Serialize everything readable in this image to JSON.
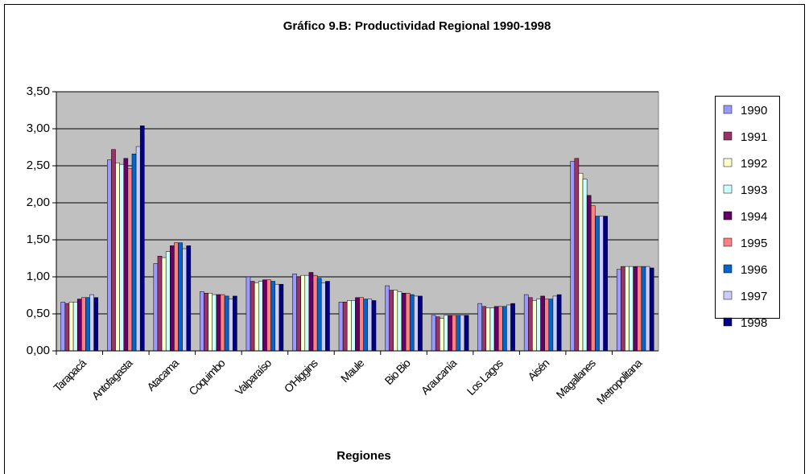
{
  "chart_data": {
    "type": "bar",
    "title": "Gráfico 9.B: Productividad Regional 1990-1998",
    "x_label": "Regiones",
    "categories": [
      "Tarapacá",
      "Antofagasta",
      "Atacama",
      "Coquimbo",
      "Valparaíso",
      "O'Higgins",
      "Maule",
      "Bio Bio",
      "Araucanía",
      "Los Lagos",
      "Aisén",
      "Magallanes",
      "Metropolitana"
    ],
    "series": [
      {
        "name": "1990",
        "color": "#9999ff",
        "values": [
          0.66,
          2.58,
          1.18,
          0.8,
          1.0,
          1.04,
          0.66,
          0.88,
          0.48,
          0.64,
          0.76,
          2.56,
          1.1
        ]
      },
      {
        "name": "1991",
        "color": "#993366",
        "values": [
          0.64,
          2.72,
          1.28,
          0.78,
          0.94,
          1.0,
          0.66,
          0.82,
          0.46,
          0.6,
          0.72,
          2.6,
          1.14
        ]
      },
      {
        "name": "1992",
        "color": "#ffffcc",
        "values": [
          0.66,
          2.54,
          1.26,
          0.78,
          0.92,
          1.02,
          0.68,
          0.82,
          0.44,
          0.58,
          0.68,
          2.4,
          1.14
        ]
      },
      {
        "name": "1993",
        "color": "#ccffff",
        "values": [
          0.66,
          2.52,
          1.34,
          0.76,
          0.94,
          1.02,
          0.68,
          0.8,
          0.48,
          0.58,
          0.7,
          2.32,
          1.14
        ]
      },
      {
        "name": "1994",
        "color": "#660066",
        "values": [
          0.7,
          2.6,
          1.42,
          0.76,
          0.96,
          1.06,
          0.72,
          0.78,
          0.48,
          0.6,
          0.74,
          2.1,
          1.14
        ]
      },
      {
        "name": "1995",
        "color": "#ff8080",
        "values": [
          0.72,
          2.46,
          1.46,
          0.76,
          0.96,
          1.02,
          0.72,
          0.78,
          0.48,
          0.6,
          0.7,
          1.96,
          1.14
        ]
      },
      {
        "name": "1996",
        "color": "#0066cc",
        "values": [
          0.72,
          2.66,
          1.46,
          0.74,
          0.94,
          0.98,
          0.7,
          0.76,
          0.48,
          0.6,
          0.7,
          1.82,
          1.14
        ]
      },
      {
        "name": "1997",
        "color": "#ccccff",
        "values": [
          0.76,
          2.76,
          1.38,
          0.7,
          0.9,
          0.92,
          0.7,
          0.74,
          0.48,
          0.62,
          0.74,
          1.82,
          1.14
        ]
      },
      {
        "name": "1998",
        "color": "#000080",
        "values": [
          0.72,
          3.04,
          1.42,
          0.74,
          0.9,
          0.94,
          0.68,
          0.74,
          0.48,
          0.64,
          0.76,
          1.82,
          1.12
        ]
      }
    ],
    "ylim": [
      0,
      3.5
    ],
    "yticks": [
      {
        "value": 0,
        "label": "0,00"
      },
      {
        "value": 0.5,
        "label": "0,50"
      },
      {
        "value": 1,
        "label": "1,00"
      },
      {
        "value": 1.5,
        "label": "1,50"
      },
      {
        "value": 2,
        "label": "2,00"
      },
      {
        "value": 2.5,
        "label": "2,50"
      },
      {
        "value": 3,
        "label": "3,00"
      },
      {
        "value": 3.5,
        "label": "3,50"
      }
    ],
    "grid": true,
    "legend": "right"
  }
}
